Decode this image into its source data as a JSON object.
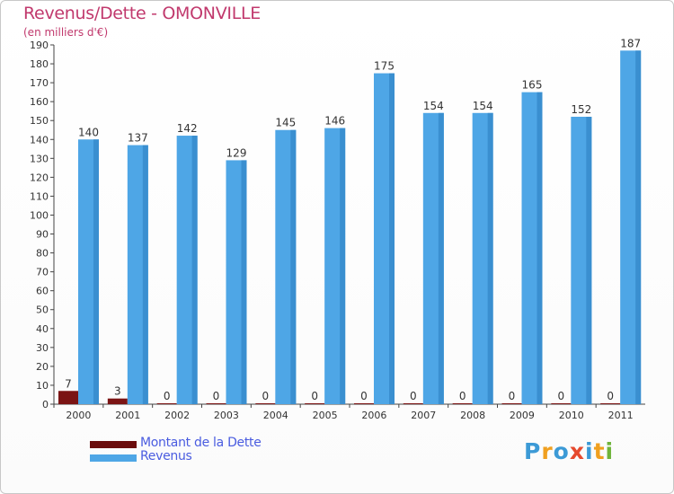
{
  "title": "Revenus/Dette - OMONVILLE",
  "subtitle": "(en milliers d'€)",
  "chart_data": {
    "type": "bar",
    "categories": [
      "2000",
      "2001",
      "2002",
      "2003",
      "2004",
      "2005",
      "2006",
      "2007",
      "2008",
      "2009",
      "2010",
      "2011"
    ],
    "series": [
      {
        "name": "Montant de la Dette",
        "values": [
          7,
          3,
          0,
          0,
          0,
          0,
          0,
          0,
          0,
          0,
          0,
          0
        ],
        "color": "#7b1414"
      },
      {
        "name": "Revenus",
        "values": [
          140,
          137,
          142,
          129,
          145,
          146,
          175,
          154,
          154,
          165,
          152,
          187
        ],
        "color": "#4ea6e6"
      }
    ],
    "ylim": [
      0,
      190
    ],
    "yticks": [
      0,
      10,
      20,
      30,
      40,
      50,
      60,
      70,
      80,
      90,
      100,
      110,
      120,
      130,
      140,
      150,
      160,
      170,
      180,
      190
    ],
    "grid": false,
    "legend": "bottom-left"
  },
  "legend": [
    {
      "label": "Montant de la Dette",
      "color": "#6b0c0c"
    },
    {
      "label": "Revenus",
      "color": "#4ea6e6"
    }
  ],
  "logo": {
    "letters": [
      "P",
      "r",
      "o",
      "x",
      "i",
      "t",
      "i"
    ],
    "colors": [
      "#3c9ad6",
      "#f0a020",
      "#3c9ad6",
      "#e64a2e",
      "#3c9ad6",
      "#f0a020",
      "#6fb43a"
    ]
  }
}
